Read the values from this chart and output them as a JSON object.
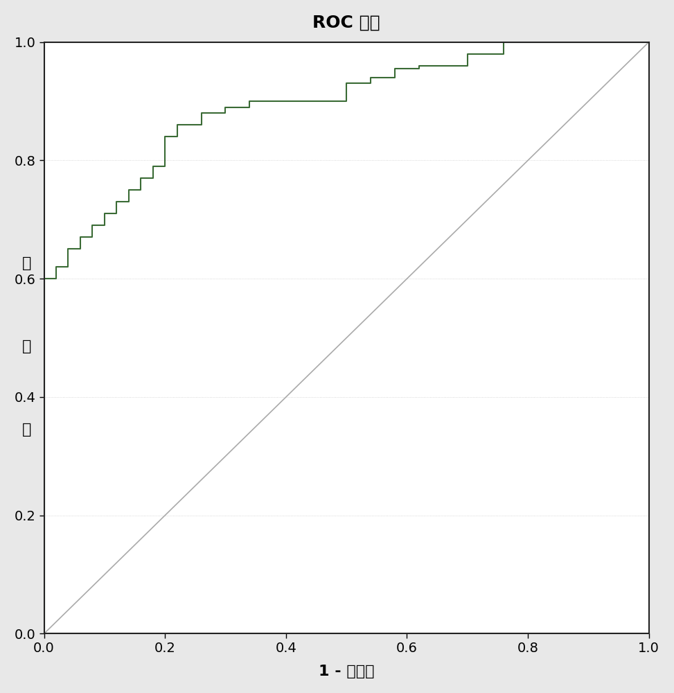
{
  "title": "ROC 曲线",
  "xlabel": "1 - 特异性",
  "ylabel": "敏感度",
  "xlim": [
    0.0,
    1.0
  ],
  "ylim": [
    0.0,
    1.0
  ],
  "xticks": [
    0.0,
    0.2,
    0.4,
    0.6,
    0.8,
    1.0
  ],
  "yticks": [
    0.0,
    0.2,
    0.4,
    0.6,
    0.8,
    1.0
  ],
  "roc_color": "#3a6b35",
  "diag_color": "#aaaaaa",
  "background_color": "#e8e8e8",
  "plot_bg_color": "#ffffff",
  "roc_fpr": [
    0.0,
    0.0,
    0.02,
    0.02,
    0.04,
    0.04,
    0.06,
    0.06,
    0.08,
    0.08,
    0.1,
    0.1,
    0.12,
    0.12,
    0.14,
    0.14,
    0.16,
    0.16,
    0.18,
    0.18,
    0.2,
    0.2,
    0.22,
    0.22,
    0.26,
    0.26,
    0.3,
    0.3,
    0.34,
    0.34,
    0.38,
    0.38,
    0.5,
    0.5,
    0.54,
    0.54,
    0.58,
    0.58,
    0.62,
    0.62,
    0.7,
    0.7,
    0.76,
    0.76,
    1.0,
    1.0
  ],
  "roc_tpr": [
    0.0,
    0.6,
    0.6,
    0.62,
    0.62,
    0.65,
    0.65,
    0.67,
    0.67,
    0.69,
    0.69,
    0.71,
    0.71,
    0.73,
    0.73,
    0.75,
    0.75,
    0.77,
    0.77,
    0.79,
    0.79,
    0.84,
    0.84,
    0.86,
    0.86,
    0.88,
    0.88,
    0.89,
    0.89,
    0.9,
    0.9,
    0.9,
    0.9,
    0.93,
    0.93,
    0.94,
    0.94,
    0.955,
    0.955,
    0.96,
    0.96,
    0.98,
    0.98,
    1.0,
    1.0,
    1.0
  ]
}
